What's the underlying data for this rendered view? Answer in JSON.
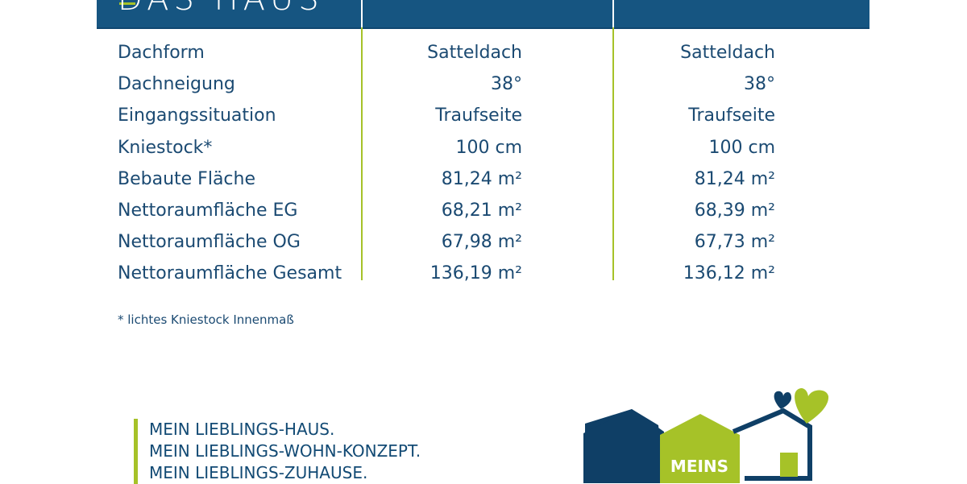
{
  "section_title": "DAS HAUS",
  "rows": [
    {
      "label": "Dachform",
      "v1": "Satteldach",
      "v2": "Satteldach"
    },
    {
      "label": "Dachneigung",
      "v1": "38°",
      "v2": "38°"
    },
    {
      "label": "Eingangssituation",
      "v1": "Traufseite",
      "v2": "Traufseite"
    },
    {
      "label": "Kniestock*",
      "v1": "100 cm",
      "v2": "100 cm"
    },
    {
      "label": "Bebaute Fläche",
      "v1": "81,24 m²",
      "v2": "81,24 m²"
    },
    {
      "label": "Nettoraumfläche EG",
      "v1": "68,21 m²",
      "v2": "68,39 m²"
    },
    {
      "label": "Nettoraumfläche OG",
      "v1": "67,98 m²",
      "v2": "67,73 m²"
    },
    {
      "label": "Nettoraumfläche Gesamt",
      "v1": "136,19 m²",
      "v2": "136,12 m²"
    }
  ],
  "footnote": "* lichtes Kniestock Innenmaß",
  "slogan": [
    "MEIN LIEBLINGS-HAUS.",
    "MEIN LIEBLINGS-WOHN-KONZEPT.",
    "MEIN LIEBLINGS-ZUHAUSE."
  ],
  "logo_text": "MEINS",
  "colors": {
    "navy": "#165581",
    "green": "#a6c228",
    "text": "#1b4a72"
  }
}
